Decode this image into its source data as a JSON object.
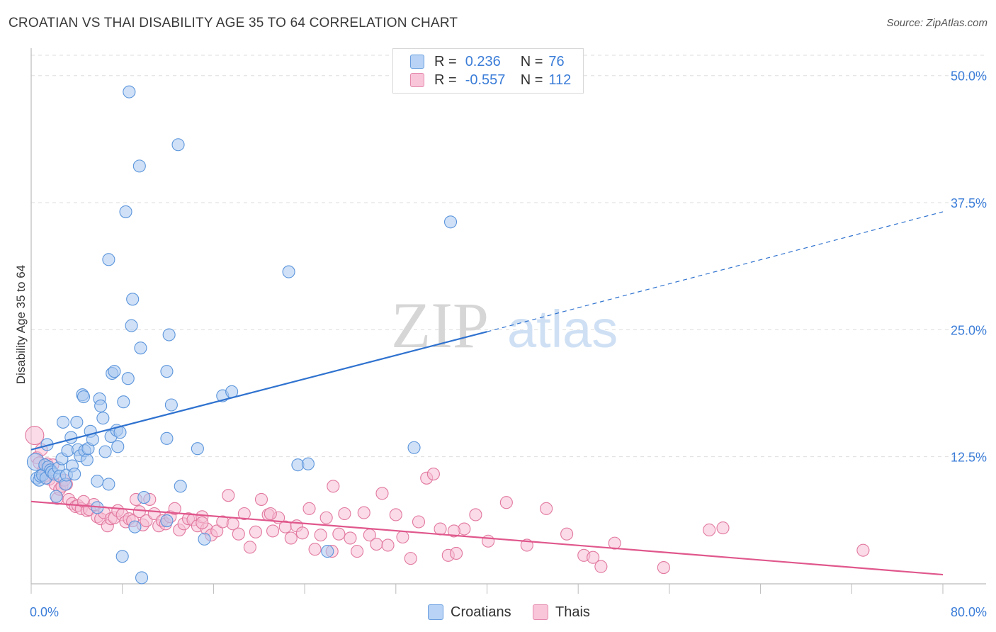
{
  "header": {
    "title": "CROATIAN VS THAI DISABILITY AGE 35 TO 64 CORRELATION CHART",
    "source": "Source: ZipAtlas.com"
  },
  "watermark": {
    "part1": "ZIP",
    "part2": "atlas"
  },
  "legend": {
    "series": [
      {
        "name": "Croatians",
        "r_label": "R =",
        "r_value": "0.236",
        "n_label": "N =",
        "n_value": "76",
        "color": "#3b7dd8"
      },
      {
        "name": "Thais",
        "r_label": "R =",
        "r_value": "-0.557",
        "n_label": "N =",
        "n_value": "112",
        "color": "#e0508a"
      }
    ]
  },
  "colors": {
    "blue_fill": "#a9c8f0",
    "blue_stroke": "#5b95dc",
    "blue_line": "#2f72cf",
    "pink_fill": "#f6bdd3",
    "pink_stroke": "#e2789f",
    "pink_line": "#e0578c",
    "tick_label": "#3b7dd8",
    "grid": "#dddddd"
  },
  "chart_data": {
    "type": "scatter",
    "title": "CROATIAN VS THAI DISABILITY AGE 35 TO 64 CORRELATION CHART",
    "xlabel": "",
    "ylabel": "Disability Age 35 to 64",
    "xlim": [
      0,
      80
    ],
    "ylim": [
      0,
      52
    ],
    "x_tick_labels": [
      {
        "value": 0,
        "label": "0.0%"
      },
      {
        "value": 80,
        "label": "80.0%"
      }
    ],
    "y_tick_labels": [
      {
        "value": 12.5,
        "label": "12.5%"
      },
      {
        "value": 25.0,
        "label": "25.0%"
      },
      {
        "value": 37.5,
        "label": "37.5%"
      },
      {
        "value": 50.0,
        "label": "50.0%"
      }
    ],
    "grid": true,
    "series": [
      {
        "name": "Croatians",
        "r": 0.236,
        "n": 76,
        "trend": {
          "x0": 0,
          "y0": 13.2,
          "x1": 40,
          "y1": 24.8,
          "dashed_to_x": 80,
          "dashed_to_y": 36.6
        },
        "points": [
          [
            0.4,
            12.0
          ],
          [
            0.5,
            10.4
          ],
          [
            0.7,
            10.2
          ],
          [
            0.8,
            10.6
          ],
          [
            1.0,
            10.7
          ],
          [
            1.2,
            11.7
          ],
          [
            1.3,
            10.4
          ],
          [
            1.4,
            13.7
          ],
          [
            1.5,
            11.5
          ],
          [
            1.7,
            11.2
          ],
          [
            1.8,
            11.0
          ],
          [
            2.0,
            10.8
          ],
          [
            2.2,
            8.6
          ],
          [
            2.4,
            11.4
          ],
          [
            2.5,
            10.6
          ],
          [
            2.7,
            12.3
          ],
          [
            2.8,
            15.9
          ],
          [
            3.0,
            9.8
          ],
          [
            3.1,
            10.7
          ],
          [
            3.2,
            13.1
          ],
          [
            3.5,
            14.4
          ],
          [
            3.6,
            11.6
          ],
          [
            3.8,
            10.8
          ],
          [
            4.0,
            15.9
          ],
          [
            4.1,
            13.2
          ],
          [
            4.3,
            12.6
          ],
          [
            4.5,
            18.6
          ],
          [
            4.6,
            18.4
          ],
          [
            4.7,
            13.1
          ],
          [
            4.9,
            12.2
          ],
          [
            5.0,
            13.3
          ],
          [
            5.2,
            15.0
          ],
          [
            5.4,
            14.2
          ],
          [
            5.8,
            7.5
          ],
          [
            5.8,
            10.1
          ],
          [
            6.0,
            18.2
          ],
          [
            6.1,
            17.5
          ],
          [
            6.3,
            16.3
          ],
          [
            6.5,
            13.0
          ],
          [
            6.8,
            9.8
          ],
          [
            6.8,
            31.9
          ],
          [
            7.0,
            14.5
          ],
          [
            7.1,
            20.7
          ],
          [
            7.3,
            20.9
          ],
          [
            7.5,
            15.1
          ],
          [
            7.6,
            13.5
          ],
          [
            7.8,
            14.9
          ],
          [
            8.0,
            2.7
          ],
          [
            8.1,
            17.9
          ],
          [
            8.3,
            36.6
          ],
          [
            8.5,
            20.2
          ],
          [
            8.6,
            48.4
          ],
          [
            8.8,
            25.4
          ],
          [
            8.9,
            28.0
          ],
          [
            9.1,
            5.6
          ],
          [
            9.5,
            41.1
          ],
          [
            9.6,
            23.2
          ],
          [
            9.7,
            0.6
          ],
          [
            9.9,
            8.5
          ],
          [
            11.9,
            6.2
          ],
          [
            11.9,
            14.3
          ],
          [
            11.9,
            20.9
          ],
          [
            12.1,
            24.5
          ],
          [
            12.3,
            17.6
          ],
          [
            12.9,
            43.2
          ],
          [
            13.1,
            9.6
          ],
          [
            14.6,
            13.3
          ],
          [
            15.2,
            4.4
          ],
          [
            16.8,
            18.5
          ],
          [
            17.6,
            18.9
          ],
          [
            22.6,
            30.7
          ],
          [
            23.4,
            11.7
          ],
          [
            24.3,
            11.8
          ],
          [
            26.0,
            3.2
          ],
          [
            33.6,
            13.4
          ],
          [
            36.8,
            35.6
          ]
        ]
      },
      {
        "name": "Thais",
        "r": -0.557,
        "n": 112,
        "trend": {
          "x0": 0,
          "y0": 8.1,
          "x1": 80,
          "y1": 0.9
        },
        "points": [
          [
            0.3,
            14.6
          ],
          [
            0.5,
            12.4
          ],
          [
            0.7,
            11.9
          ],
          [
            0.9,
            13.2
          ],
          [
            1.1,
            11.2
          ],
          [
            1.2,
            10.6
          ],
          [
            1.4,
            11.8
          ],
          [
            1.6,
            10.3
          ],
          [
            1.9,
            11.7
          ],
          [
            2.1,
            9.8
          ],
          [
            2.3,
            8.4
          ],
          [
            2.5,
            9.3
          ],
          [
            2.7,
            9.6
          ],
          [
            2.9,
            10.2
          ],
          [
            3.1,
            9.8
          ],
          [
            3.3,
            8.3
          ],
          [
            3.6,
            7.9
          ],
          [
            3.9,
            7.6
          ],
          [
            4.1,
            7.7
          ],
          [
            4.4,
            7.4
          ],
          [
            4.6,
            8.1
          ],
          [
            4.9,
            7.2
          ],
          [
            5.1,
            7.3
          ],
          [
            5.5,
            7.8
          ],
          [
            5.8,
            6.6
          ],
          [
            6.1,
            6.4
          ],
          [
            6.4,
            7.0
          ],
          [
            6.7,
            5.7
          ],
          [
            7.0,
            6.4
          ],
          [
            7.3,
            6.5
          ],
          [
            7.6,
            7.2
          ],
          [
            8.0,
            6.8
          ],
          [
            8.3,
            6.1
          ],
          [
            8.6,
            6.4
          ],
          [
            8.9,
            6.2
          ],
          [
            9.2,
            8.3
          ],
          [
            9.5,
            7.1
          ],
          [
            9.8,
            5.8
          ],
          [
            10.1,
            6.2
          ],
          [
            10.4,
            8.3
          ],
          [
            10.8,
            6.9
          ],
          [
            11.2,
            5.7
          ],
          [
            11.5,
            6.2
          ],
          [
            11.8,
            5.9
          ],
          [
            12.2,
            6.6
          ],
          [
            12.6,
            7.4
          ],
          [
            13.0,
            5.3
          ],
          [
            13.4,
            5.9
          ],
          [
            13.8,
            6.4
          ],
          [
            14.2,
            6.3
          ],
          [
            14.6,
            5.7
          ],
          [
            15.0,
            6.6
          ],
          [
            15.4,
            5.4
          ],
          [
            15.8,
            4.8
          ],
          [
            16.3,
            5.2
          ],
          [
            16.8,
            6.1
          ],
          [
            17.3,
            8.7
          ],
          [
            17.7,
            5.9
          ],
          [
            18.2,
            4.9
          ],
          [
            18.7,
            6.9
          ],
          [
            19.2,
            3.6
          ],
          [
            19.7,
            5.1
          ],
          [
            20.2,
            8.3
          ],
          [
            20.8,
            6.8
          ],
          [
            21.2,
            5.2
          ],
          [
            21.7,
            6.5
          ],
          [
            22.3,
            5.6
          ],
          [
            22.8,
            4.5
          ],
          [
            23.3,
            5.7
          ],
          [
            23.8,
            5.0
          ],
          [
            24.4,
            7.4
          ],
          [
            24.9,
            3.4
          ],
          [
            25.4,
            4.8
          ],
          [
            25.9,
            6.5
          ],
          [
            26.4,
            3.2
          ],
          [
            27.0,
            4.9
          ],
          [
            27.5,
            6.9
          ],
          [
            28.0,
            4.5
          ],
          [
            28.6,
            3.2
          ],
          [
            29.2,
            7.0
          ],
          [
            29.7,
            4.8
          ],
          [
            30.3,
            3.9
          ],
          [
            30.8,
            8.9
          ],
          [
            31.3,
            3.8
          ],
          [
            32.0,
            6.8
          ],
          [
            32.6,
            4.6
          ],
          [
            33.3,
            2.5
          ],
          [
            34.0,
            6.1
          ],
          [
            34.7,
            10.4
          ],
          [
            35.3,
            10.8
          ],
          [
            35.9,
            5.4
          ],
          [
            36.6,
            2.8
          ],
          [
            37.3,
            3.0
          ],
          [
            38.0,
            5.4
          ],
          [
            39.0,
            6.8
          ],
          [
            40.1,
            4.2
          ],
          [
            41.7,
            8.0
          ],
          [
            43.5,
            3.8
          ],
          [
            45.2,
            7.4
          ],
          [
            47.0,
            4.9
          ],
          [
            48.5,
            2.8
          ],
          [
            49.3,
            2.6
          ],
          [
            50.0,
            1.7
          ],
          [
            51.2,
            4.0
          ],
          [
            55.5,
            1.6
          ],
          [
            59.5,
            5.3
          ],
          [
            60.7,
            5.5
          ],
          [
            73.0,
            3.3
          ],
          [
            15.0,
            6.0
          ],
          [
            21.0,
            6.9
          ],
          [
            26.5,
            9.6
          ],
          [
            37.1,
            5.2
          ]
        ]
      }
    ]
  }
}
